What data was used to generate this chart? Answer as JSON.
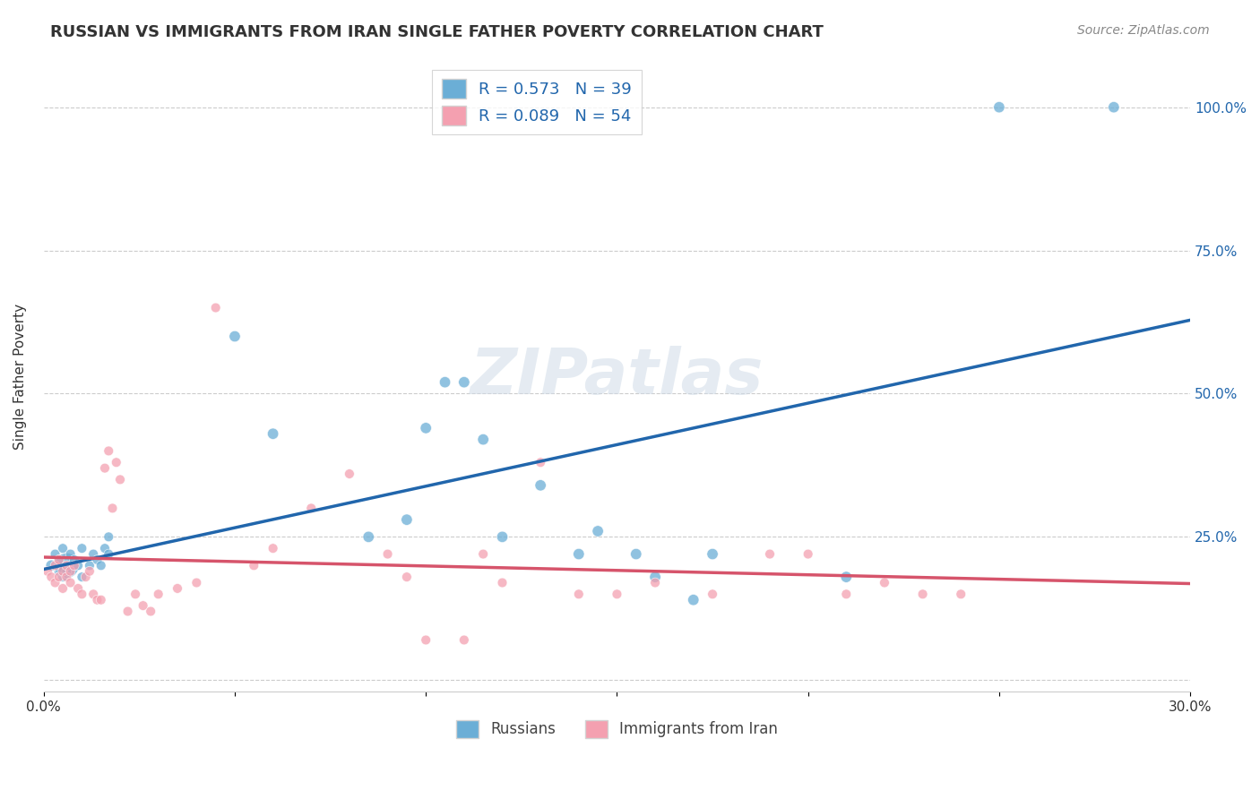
{
  "title": "RUSSIAN VS IMMIGRANTS FROM IRAN SINGLE FATHER POVERTY CORRELATION CHART",
  "source": "Source: ZipAtlas.com",
  "xlabel_bottom": "",
  "ylabel": "Single Father Poverty",
  "x_min": 0.0,
  "x_max": 0.3,
  "y_min": -0.02,
  "y_max": 1.08,
  "x_ticks": [
    0.0,
    0.05,
    0.1,
    0.15,
    0.2,
    0.25,
    0.3
  ],
  "x_tick_labels": [
    "0.0%",
    "",
    "",
    "",
    "",
    "",
    "30.0%"
  ],
  "y_ticks": [
    0.0,
    0.25,
    0.5,
    0.75,
    1.0
  ],
  "y_tick_labels": [
    "",
    "25.0%",
    "50.0%",
    "75.0%",
    "100.0%"
  ],
  "russian_R": 0.573,
  "russian_N": 39,
  "iran_R": 0.089,
  "iran_N": 54,
  "blue_color": "#6baed6",
  "blue_line_color": "#2166ac",
  "pink_color": "#f4a0b0",
  "pink_line_color": "#d6546b",
  "watermark": "ZIPatlas",
  "legend_labels": [
    "Russians",
    "Immigrants from Iran"
  ],
  "russian_x": [
    0.002,
    0.003,
    0.004,
    0.004,
    0.005,
    0.005,
    0.006,
    0.006,
    0.007,
    0.008,
    0.009,
    0.01,
    0.01,
    0.012,
    0.013,
    0.014,
    0.015,
    0.016,
    0.017,
    0.017,
    0.05,
    0.06,
    0.085,
    0.095,
    0.1,
    0.105,
    0.11,
    0.115,
    0.12,
    0.13,
    0.14,
    0.145,
    0.155,
    0.16,
    0.17,
    0.175,
    0.21,
    0.25,
    0.28
  ],
  "russian_y": [
    0.2,
    0.22,
    0.19,
    0.21,
    0.18,
    0.23,
    0.2,
    0.19,
    0.22,
    0.21,
    0.2,
    0.18,
    0.23,
    0.2,
    0.22,
    0.21,
    0.2,
    0.23,
    0.25,
    0.22,
    0.6,
    0.43,
    0.25,
    0.28,
    0.44,
    0.52,
    0.52,
    0.42,
    0.25,
    0.34,
    0.22,
    0.26,
    0.22,
    0.18,
    0.14,
    0.22,
    0.18,
    1.0,
    1.0
  ],
  "russian_sizes": [
    80,
    60,
    60,
    60,
    60,
    60,
    400,
    60,
    60,
    60,
    60,
    60,
    60,
    60,
    60,
    60,
    60,
    60,
    60,
    60,
    80,
    80,
    80,
    80,
    80,
    80,
    80,
    80,
    80,
    80,
    80,
    80,
    80,
    80,
    80,
    80,
    80,
    80,
    80
  ],
  "iran_x": [
    0.001,
    0.002,
    0.003,
    0.003,
    0.004,
    0.004,
    0.005,
    0.005,
    0.006,
    0.006,
    0.007,
    0.007,
    0.008,
    0.009,
    0.01,
    0.011,
    0.012,
    0.013,
    0.014,
    0.015,
    0.016,
    0.017,
    0.018,
    0.019,
    0.02,
    0.022,
    0.024,
    0.026,
    0.028,
    0.03,
    0.035,
    0.04,
    0.045,
    0.055,
    0.06,
    0.07,
    0.08,
    0.09,
    0.095,
    0.1,
    0.11,
    0.115,
    0.12,
    0.13,
    0.14,
    0.15,
    0.16,
    0.175,
    0.19,
    0.2,
    0.21,
    0.22,
    0.23,
    0.24
  ],
  "iran_y": [
    0.19,
    0.18,
    0.17,
    0.2,
    0.18,
    0.21,
    0.16,
    0.19,
    0.18,
    0.2,
    0.17,
    0.19,
    0.2,
    0.16,
    0.15,
    0.18,
    0.19,
    0.15,
    0.14,
    0.14,
    0.37,
    0.4,
    0.3,
    0.38,
    0.35,
    0.12,
    0.15,
    0.13,
    0.12,
    0.15,
    0.16,
    0.17,
    0.65,
    0.2,
    0.23,
    0.3,
    0.36,
    0.22,
    0.18,
    0.07,
    0.07,
    0.22,
    0.17,
    0.38,
    0.15,
    0.15,
    0.17,
    0.15,
    0.22,
    0.22,
    0.15,
    0.17,
    0.15,
    0.15
  ],
  "iran_sizes": [
    60,
    60,
    60,
    60,
    60,
    60,
    60,
    60,
    60,
    60,
    60,
    60,
    60,
    60,
    60,
    60,
    60,
    60,
    60,
    60,
    60,
    60,
    60,
    60,
    60,
    60,
    60,
    60,
    60,
    60,
    60,
    60,
    60,
    60,
    60,
    60,
    60,
    60,
    60,
    60,
    60,
    60,
    60,
    60,
    60,
    60,
    60,
    60,
    60,
    60,
    60,
    60,
    60,
    60
  ]
}
